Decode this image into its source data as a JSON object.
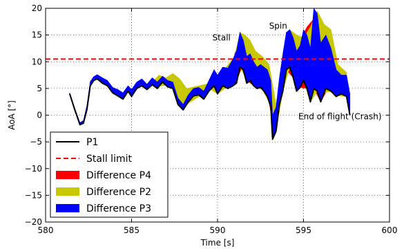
{
  "chart_data": {
    "type": "line",
    "xlabel": "Time [s]",
    "ylabel": "AoA [°]",
    "xlim": [
      580,
      600
    ],
    "ylim": [
      -20,
      20
    ],
    "xticks": [
      580,
      585,
      590,
      595,
      600
    ],
    "yticks": [
      -20,
      -15,
      -10,
      -5,
      0,
      5,
      10,
      15,
      20
    ],
    "grid": true,
    "legend_position": "lower-left",
    "stall_limit": 10.5,
    "annotations": [
      {
        "text": "Stall",
        "x": 589.7,
        "y": 14.0
      },
      {
        "text": "Spin",
        "x": 593.0,
        "y": 16.2
      },
      {
        "text": "End of flight (Crash)",
        "x": 594.7,
        "y": -0.8
      }
    ],
    "series": [
      {
        "name": "P1",
        "style": "line",
        "color": "#000000",
        "x": [
          581.4,
          581.7,
          582.0,
          582.2,
          582.4,
          582.6,
          582.8,
          583.0,
          583.3,
          583.6,
          583.9,
          584.2,
          584.5,
          584.8,
          585.0,
          585.3,
          585.6,
          585.9,
          586.2,
          586.5,
          586.8,
          587.1,
          587.4,
          587.7,
          588.0,
          588.3,
          588.6,
          588.9,
          589.2,
          589.5,
          589.8,
          590.0,
          590.3,
          590.6,
          590.9,
          591.1,
          591.3,
          591.5,
          591.7,
          591.9,
          592.1,
          592.3,
          592.5,
          592.7,
          592.9,
          593.1,
          593.2,
          593.4,
          593.6,
          593.8,
          594.0,
          594.2,
          594.4,
          594.6,
          594.8,
          595.0,
          595.2,
          595.4,
          595.6,
          595.8,
          596.0,
          596.3,
          596.6,
          596.9,
          597.2,
          597.5,
          597.7
        ],
        "y": [
          4.0,
          1.0,
          -1.8,
          -1.5,
          1.0,
          5.5,
          6.5,
          6.8,
          6.0,
          5.5,
          4.2,
          3.6,
          3.0,
          4.5,
          3.5,
          5.0,
          5.5,
          4.8,
          5.7,
          5.0,
          6.2,
          5.3,
          5.0,
          2.0,
          1.0,
          2.5,
          3.6,
          3.8,
          3.0,
          4.5,
          5.5,
          4.0,
          5.5,
          5.0,
          5.5,
          6.0,
          9.0,
          8.5,
          6.0,
          6.5,
          5.5,
          5.0,
          5.2,
          4.5,
          3.5,
          1.5,
          -4.5,
          -3.0,
          2.0,
          4.5,
          8.5,
          9.0,
          7.0,
          4.5,
          5.2,
          6.5,
          5.0,
          2.5,
          5.0,
          4.5,
          2.5,
          5.0,
          4.5,
          3.5,
          4.0,
          3.5,
          0.0
        ]
      },
      {
        "name": "Stall limit",
        "style": "dashed",
        "color": "#ff0000"
      },
      {
        "name": "Difference P4",
        "style": "band",
        "color": "#ff0000",
        "x": [
          591.0,
          591.4,
          591.8,
          592.2,
          592.6,
          593.0,
          593.3,
          593.6,
          594.0,
          594.4,
          594.8,
          595.2,
          595.6,
          596.0,
          596.4,
          596.8,
          597.2,
          597.5
        ],
        "y": [
          11.5,
          15.0,
          12.5,
          10.5,
          10.5,
          9.0,
          -2.0,
          3.0,
          11.5,
          15.5,
          14.0,
          16.5,
          18.0,
          15.5,
          11.0,
          9.5,
          8.5,
          8.0
        ]
      },
      {
        "name": "Difference P2",
        "style": "band",
        "color": "#c8c800",
        "x": [
          586.2,
          586.6,
          587.0,
          587.4,
          587.8,
          588.2,
          589.6,
          590.0,
          590.5,
          591.0,
          591.3,
          591.6,
          591.9,
          592.2,
          592.6,
          593.0,
          593.4,
          593.8,
          594.2,
          594.6,
          595.0,
          595.4,
          595.8,
          596.2,
          596.6,
          597.0,
          597.5
        ],
        "y": [
          6.2,
          7.5,
          7.0,
          7.8,
          6.8,
          5.0,
          6.0,
          7.5,
          9.0,
          11.0,
          15.5,
          15.0,
          14.0,
          12.0,
          11.0,
          9.5,
          2.0,
          9.5,
          16.0,
          15.0,
          14.5,
          16.5,
          19.5,
          17.0,
          16.0,
          9.5,
          8.0
        ]
      },
      {
        "name": "Difference P3",
        "style": "band",
        "color": "#0000ff",
        "x": [
          581.4,
          581.7,
          582.0,
          582.2,
          582.4,
          582.6,
          582.8,
          583.0,
          583.3,
          583.6,
          583.9,
          584.2,
          584.5,
          584.8,
          585.0,
          585.3,
          585.6,
          585.9,
          586.2,
          586.5,
          586.8,
          587.1,
          587.4,
          587.7,
          588.0,
          588.3,
          588.6,
          588.9,
          589.2,
          589.5,
          589.8,
          590.0,
          590.3,
          590.6,
          590.9,
          591.1,
          591.3,
          591.5,
          591.7,
          591.9,
          592.1,
          592.3,
          592.5,
          592.7,
          592.9,
          593.1,
          593.2,
          593.4,
          593.6,
          593.8,
          594.0,
          594.2,
          594.4,
          594.6,
          594.8,
          595.0,
          595.2,
          595.4,
          595.6,
          595.8,
          596.0,
          596.3,
          596.6,
          596.9,
          597.2,
          597.5,
          597.7
        ],
        "y": [
          4.2,
          1.3,
          -1.4,
          -1.0,
          1.8,
          6.3,
          7.2,
          7.6,
          7.0,
          6.5,
          5.2,
          4.8,
          4.2,
          5.5,
          4.8,
          6.2,
          6.8,
          5.8,
          7.0,
          6.2,
          7.3,
          6.5,
          6.2,
          3.2,
          2.0,
          3.8,
          5.0,
          5.2,
          4.5,
          6.5,
          8.5,
          7.5,
          9.0,
          8.8,
          10.5,
          12.0,
          15.5,
          14.0,
          11.0,
          11.5,
          10.0,
          9.0,
          9.5,
          9.0,
          8.5,
          6.5,
          0.0,
          1.5,
          7.0,
          11.5,
          15.5,
          16.0,
          14.5,
          12.0,
          13.0,
          16.0,
          15.0,
          12.5,
          20.0,
          19.0,
          13.5,
          15.0,
          12.5,
          8.5,
          7.5,
          7.5,
          4.0
        ]
      }
    ]
  }
}
